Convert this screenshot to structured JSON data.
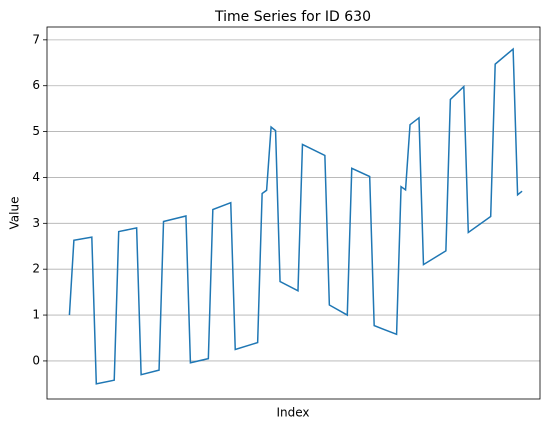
{
  "chart_data": {
    "type": "line",
    "title": "Time Series for ID 630",
    "x_label": "Index",
    "y_label": "Value",
    "x": [
      0,
      1,
      5,
      6,
      10,
      11,
      15,
      16,
      20,
      21,
      26,
      27,
      31,
      32,
      36,
      37,
      42,
      43,
      44,
      45,
      46,
      47,
      51,
      52,
      57,
      58,
      62,
      63,
      67,
      68,
      73,
      74,
      75,
      76,
      78,
      79,
      84,
      85,
      88,
      89,
      94,
      95,
      99,
      100,
      101
    ],
    "series": [
      {
        "name": "Value",
        "color": "#1f77b4",
        "values": [
          1.0,
          2.63,
          2.7,
          -0.5,
          -0.42,
          2.82,
          2.9,
          -0.3,
          -0.2,
          3.04,
          3.16,
          -0.04,
          0.05,
          3.3,
          3.45,
          0.25,
          0.4,
          3.65,
          3.72,
          5.1,
          5.02,
          1.73,
          1.53,
          4.72,
          4.48,
          1.22,
          1.0,
          4.2,
          4.02,
          0.77,
          0.58,
          3.8,
          3.73,
          5.15,
          5.3,
          2.1,
          2.4,
          5.7,
          5.98,
          2.8,
          3.15,
          6.47,
          6.8,
          3.62,
          3.7
        ]
      }
    ],
    "xlim": [
      -5,
      105
    ],
    "ylim": [
      -0.83,
      7.28
    ],
    "yticks": [
      0,
      1,
      2,
      3,
      4,
      5,
      6,
      7
    ],
    "grid": true
  }
}
